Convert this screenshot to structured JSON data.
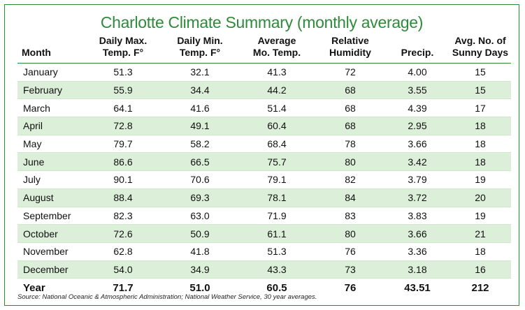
{
  "title": "Charlotte Climate Summary (monthly average)",
  "headers": {
    "month": "Month",
    "max": [
      "Daily Max.",
      "Temp. F°"
    ],
    "min": [
      "Daily Min.",
      "Temp. F°"
    ],
    "avg": [
      "Average",
      "Mo. Temp."
    ],
    "humidity": [
      "Relative",
      "Humidity"
    ],
    "precip": "Precip.",
    "sunny": [
      "Avg. No. of",
      "Sunny Days"
    ]
  },
  "rows": [
    {
      "month": "January",
      "max": "51.3",
      "min": "32.1",
      "avg": "41.3",
      "humidity": "72",
      "precip": "4.00",
      "sunny": "15"
    },
    {
      "month": "February",
      "max": "55.9",
      "min": "34.4",
      "avg": "44.2",
      "humidity": "68",
      "precip": "3.55",
      "sunny": "15"
    },
    {
      "month": "March",
      "max": "64.1",
      "min": "41.6",
      "avg": "51.4",
      "humidity": "68",
      "precip": "4.39",
      "sunny": "17"
    },
    {
      "month": "April",
      "max": "72.8",
      "min": "49.1",
      "avg": "60.4",
      "humidity": "68",
      "precip": "2.95",
      "sunny": "18"
    },
    {
      "month": "May",
      "max": "79.7",
      "min": "58.2",
      "avg": "68.4",
      "humidity": "78",
      "precip": "3.66",
      "sunny": "18"
    },
    {
      "month": "June",
      "max": "86.6",
      "min": "66.5",
      "avg": "75.7",
      "humidity": "80",
      "precip": "3.42",
      "sunny": "18"
    },
    {
      "month": "July",
      "max": "90.1",
      "min": "70.6",
      "avg": "79.1",
      "humidity": "82",
      "precip": "3.79",
      "sunny": "19"
    },
    {
      "month": "August",
      "max": "88.4",
      "min": "69.3",
      "avg": "78.1",
      "humidity": "84",
      "precip": "3.72",
      "sunny": "20"
    },
    {
      "month": "September",
      "max": "82.3",
      "min": "63.0",
      "avg": "71.9",
      "humidity": "83",
      "precip": "3.83",
      "sunny": "19"
    },
    {
      "month": "October",
      "max": "72.6",
      "min": "50.9",
      "avg": "61.1",
      "humidity": "80",
      "precip": "3.66",
      "sunny": "21"
    },
    {
      "month": "November",
      "max": "62.8",
      "min": "41.8",
      "avg": "51.3",
      "humidity": "76",
      "precip": "3.36",
      "sunny": "18"
    },
    {
      "month": "December",
      "max": "54.0",
      "min": "34.9",
      "avg": "43.3",
      "humidity": "73",
      "precip": "3.18",
      "sunny": "16"
    }
  ],
  "year": {
    "month": "Year",
    "max": "71.7",
    "min": "51.0",
    "avg": "60.5",
    "humidity": "76",
    "precip": "43.51",
    "sunny": "212"
  },
  "source": "Source: National Oceanic & Atmospheric Administration; National Weather Service, 30 year averages.",
  "colors": {
    "accent": "#2e8b3a",
    "stripe": "#dcefd9"
  }
}
